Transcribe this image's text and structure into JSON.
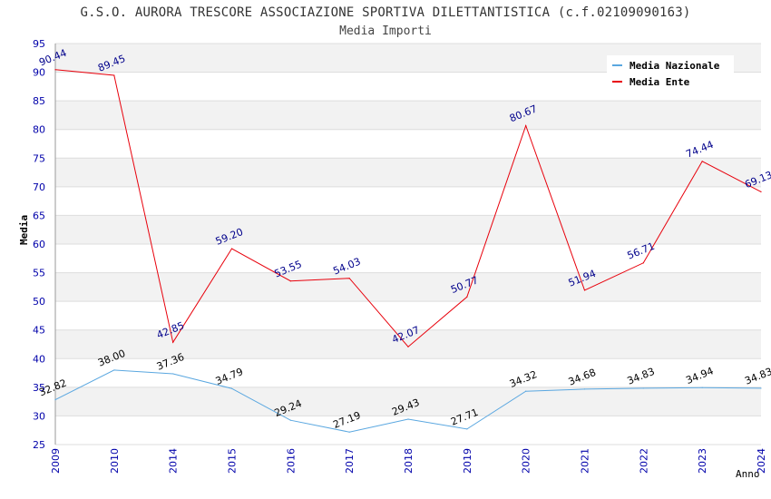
{
  "chart_data": {
    "type": "line",
    "title": "G.S.O. AURORA TRESCORE ASSOCIAZIONE SPORTIVA DILETTANTISTICA (c.f.02109090163)",
    "subtitle": "Media Importi",
    "xlabel": "Anno",
    "ylabel": "Media",
    "ylim": [
      25,
      95
    ],
    "yticks": [
      25,
      30,
      35,
      40,
      45,
      50,
      55,
      60,
      65,
      70,
      75,
      80,
      85,
      90,
      95
    ],
    "categories": [
      "2009",
      "2010",
      "2014",
      "2015",
      "2016",
      "2017",
      "2018",
      "2019",
      "2020",
      "2021",
      "2022",
      "2023",
      "2024"
    ],
    "series": [
      {
        "name": "Media Nazionale",
        "color": "#5aa7e0",
        "label_color": "#000000",
        "values": [
          32.82,
          38.0,
          37.36,
          34.79,
          29.24,
          27.19,
          29.43,
          27.71,
          34.32,
          34.68,
          34.83,
          34.94,
          34.83
        ],
        "labels": [
          "32.82",
          "38.00",
          "37.36",
          "34.79",
          "29.24",
          "27.19",
          "29.43",
          "27.71",
          "34.32",
          "34.68",
          "34.83",
          "34.94",
          "34.83"
        ]
      },
      {
        "name": "Media Ente",
        "color": "#e8000b",
        "label_color": "#00008b",
        "values": [
          90.44,
          89.45,
          42.85,
          59.2,
          53.55,
          54.03,
          42.07,
          50.77,
          80.67,
          51.94,
          56.71,
          74.44,
          69.13
        ],
        "labels": [
          "90.44",
          "89.45",
          "42.85",
          "59.20",
          "53.55",
          "54.03",
          "42.07",
          "50.77",
          "80.67",
          "51.94",
          "56.71",
          "74.44",
          "69.13"
        ]
      }
    ],
    "grid": true,
    "legend_position": "top-right"
  }
}
